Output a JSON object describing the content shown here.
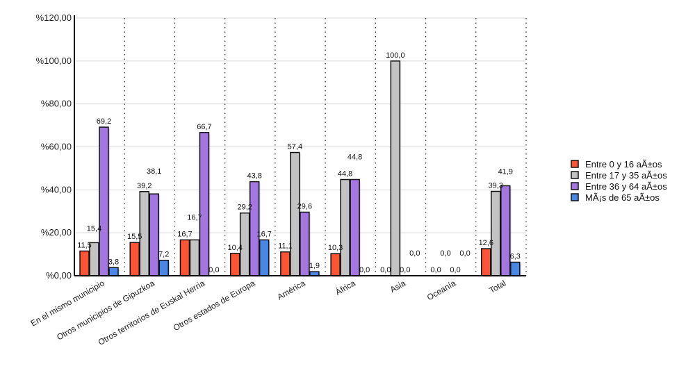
{
  "chart_data": {
    "type": "bar",
    "title": "",
    "xlabel": "",
    "ylabel": "",
    "ylim": [
      0,
      120
    ],
    "yticks": [
      0,
      20,
      40,
      60,
      80,
      100,
      120
    ],
    "ytick_labels": [
      "%0,00",
      "%20,00",
      "%40,00",
      "%60,00",
      "%80,00",
      "%100,00",
      "%120,00"
    ],
    "grid": true,
    "legend_position": "right",
    "categories": [
      "En el mismo municipio",
      "Otros municipios de Gipuzkoa",
      "Otros territorios de Euskal Herria",
      "Otros estados de Europa",
      "América",
      "África",
      "Asia",
      "Oceanía",
      "Total"
    ],
    "series": [
      {
        "name": "Entre 0 y 16 aÃ±os",
        "color": "#fb5535",
        "values": [
          11.5,
          15.5,
          16.7,
          10.4,
          11.1,
          10.3,
          0.0,
          0.0,
          12.6
        ]
      },
      {
        "name": "Entre 17 y 35 aÃ±os",
        "color": "#c3c3c3",
        "values": [
          15.4,
          39.2,
          16.7,
          29.2,
          57.4,
          44.8,
          100.0,
          0.0,
          39.3
        ]
      },
      {
        "name": "Entre 36 y 64 aÃ±os",
        "color": "#a477e0",
        "values": [
          69.2,
          38.1,
          66.7,
          43.8,
          29.6,
          44.8,
          0.0,
          0.0,
          41.9
        ]
      },
      {
        "name": "MÃ¡s de 65 aÃ±os",
        "color": "#4a86e4",
        "values": [
          3.8,
          7.2,
          0.0,
          16.7,
          1.9,
          0.0,
          0.0,
          0.0,
          6.3
        ]
      }
    ]
  }
}
